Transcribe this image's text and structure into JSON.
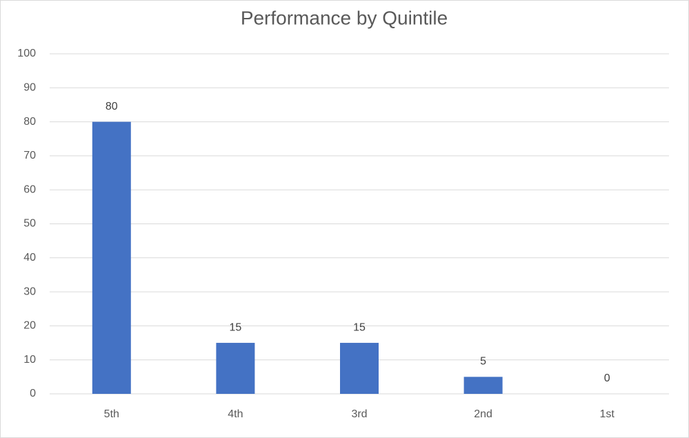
{
  "chart_data": {
    "type": "bar",
    "title": "Performance by Quintile",
    "categories": [
      "5th",
      "4th",
      "3rd",
      "2nd",
      "1st"
    ],
    "values": [
      80,
      15,
      15,
      5,
      0
    ],
    "color": "#4472c4",
    "ylim": [
      0,
      100
    ],
    "yticks": [
      0,
      10,
      20,
      30,
      40,
      50,
      60,
      70,
      80,
      90,
      100
    ],
    "grid": true
  }
}
